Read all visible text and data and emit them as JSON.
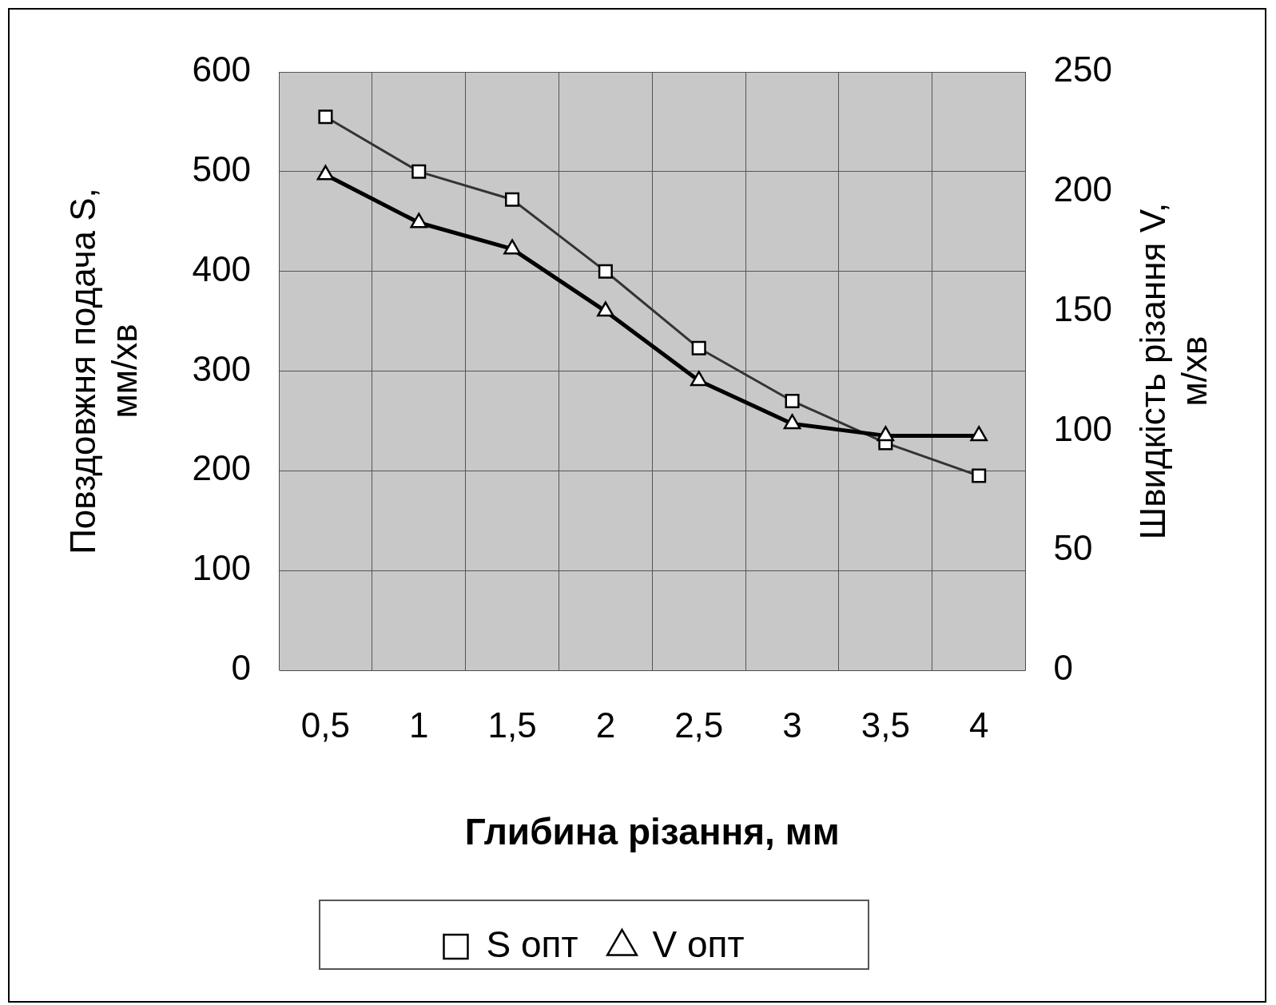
{
  "chart_data": {
    "type": "line",
    "xlabel": "Глибина різання, мм",
    "ylabel": "Повздовжня подача S,\nмм/хв",
    "y2label": "Швидкість різання V,\nм/хв",
    "categories": [
      "0,5",
      "1",
      "1,5",
      "2",
      "2,5",
      "3",
      "3,5",
      "4"
    ],
    "series": [
      {
        "name": "S опт",
        "color": "#333333",
        "marker": "square",
        "values": [
          555,
          500,
          472,
          400,
          323,
          270,
          228,
          195
        ]
      },
      {
        "name": "V опт",
        "color": "#000000",
        "marker": "triangle",
        "axis": "y2",
        "values": [
          207,
          187,
          176,
          150,
          121,
          103,
          98,
          98
        ]
      }
    ],
    "ylim": [
      0,
      600
    ],
    "yticks": [
      0,
      100,
      200,
      300,
      400,
      500,
      600
    ],
    "y2lim": [
      0,
      250
    ],
    "y2ticks": [
      0,
      50,
      100,
      150,
      200,
      250
    ],
    "grid": true,
    "legend": "bottom",
    "line_style": "solid"
  }
}
